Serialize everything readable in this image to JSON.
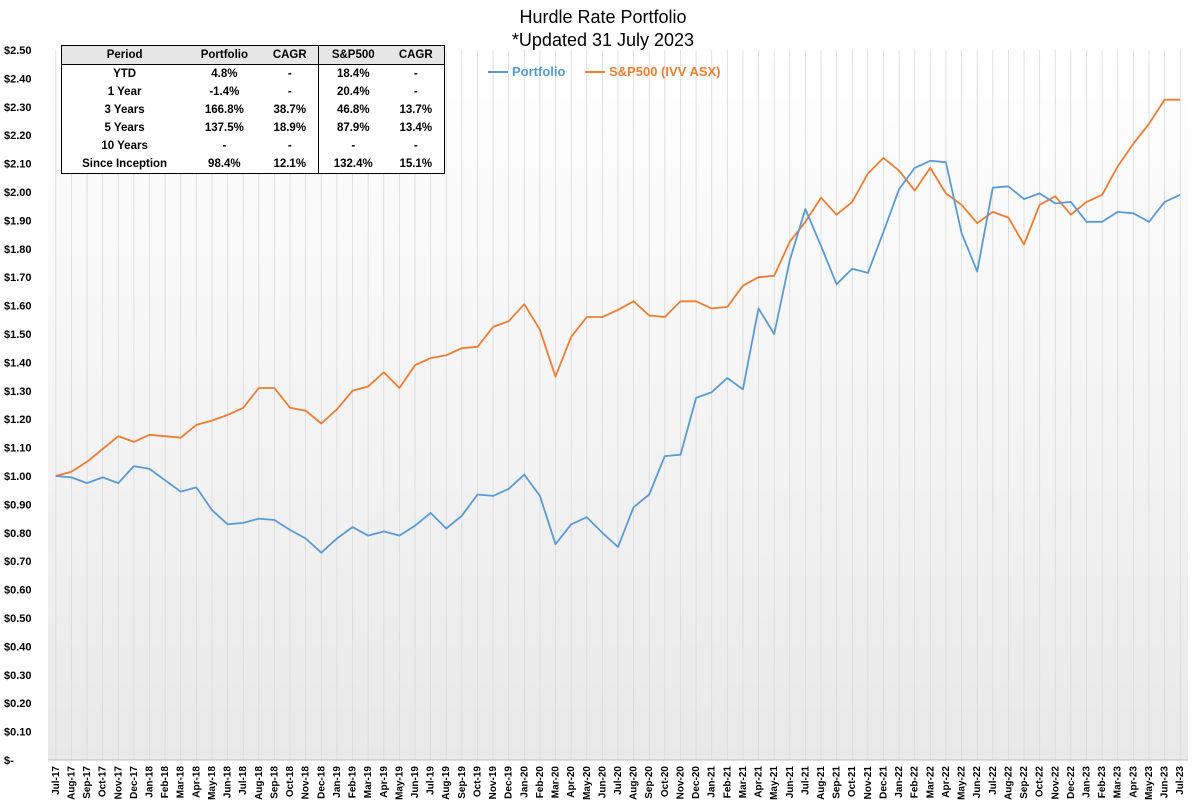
{
  "chart_data": {
    "type": "line",
    "title": "Hurdle Rate Portfolio",
    "subtitle": "*Updated 31 July 2023",
    "xlabel": "",
    "ylabel": "",
    "ylim": [
      0,
      2.5
    ],
    "y_ticks": [
      "$-",
      "$0.10",
      "$0.20",
      "$0.30",
      "$0.40",
      "$0.50",
      "$0.60",
      "$0.70",
      "$0.80",
      "$0.90",
      "$1.00",
      "$1.10",
      "$1.20",
      "$1.30",
      "$1.40",
      "$1.50",
      "$1.60",
      "$1.70",
      "$1.80",
      "$1.90",
      "$2.00",
      "$2.10",
      "$2.20",
      "$2.30",
      "$2.40",
      "$2.50"
    ],
    "grid": "vertical",
    "legend_position": "top-center",
    "categories": [
      "Jul-17",
      "Aug-17",
      "Sep-17",
      "Oct-17",
      "Nov-17",
      "Dec-17",
      "Jan-18",
      "Feb-18",
      "Mar-18",
      "Apr-18",
      "May-18",
      "Jun-18",
      "Jul-18",
      "Aug-18",
      "Sep-18",
      "Oct-18",
      "Nov-18",
      "Dec-18",
      "Jan-19",
      "Feb-19",
      "Mar-19",
      "Apr-19",
      "May-19",
      "Jun-19",
      "Jul-19",
      "Aug-19",
      "Sep-19",
      "Oct-19",
      "Nov-19",
      "Dec-19",
      "Jan-20",
      "Feb-20",
      "Mar-20",
      "Apr-20",
      "May-20",
      "Jun-20",
      "Jul-20",
      "Aug-20",
      "Sep-20",
      "Oct-20",
      "Nov-20",
      "Dec-20",
      "Jan-21",
      "Feb-21",
      "Mar-21",
      "Apr-21",
      "May-21",
      "Jun-21",
      "Jul-21",
      "Aug-21",
      "Sep-21",
      "Oct-21",
      "Nov-21",
      "Dec-21",
      "Jan-22",
      "Feb-22",
      "Mar-22",
      "Apr-22",
      "May-22",
      "Jun-22",
      "Jul-22",
      "Aug-22",
      "Sep-22",
      "Oct-22",
      "Nov-22",
      "Dec-22",
      "Jan-23",
      "Feb-23",
      "Mar-23",
      "Apr-23",
      "May-23",
      "Jun-23",
      "Jul-23"
    ],
    "x_tick_labels": [
      "Jul-17",
      "Aug-17",
      "Sep-17",
      "Oct-17",
      "Nov-17",
      "Dec-17",
      "Jan-18",
      "Feb-18",
      "Mar-18",
      "Apr-18",
      "May-18",
      "Jun-18",
      "Jul-18",
      "Aug-18",
      "Sep-18",
      "Oct-18",
      "Nov-18",
      "Dec-18",
      "Jan-19",
      "Feb-19",
      "Mar-19",
      "Apr-19",
      "May-19",
      "Jun-19",
      "Jul-19",
      "Aug-19",
      "Sep-19",
      "Oct-19",
      "Nov-19",
      "Dec-19",
      "Jan-20",
      "Feb-20",
      "Mar-20",
      "Apr-20",
      "May-20",
      "Jun-20",
      "Jul-20",
      "Aug-20",
      "Sep-20",
      "Oct-20",
      "Nov-20",
      "Dec-20",
      "Jan-21",
      "Feb-21",
      "Mar-21",
      "Apr-21",
      "May-21",
      "Jun-21",
      "Jul-21",
      "Aug-21",
      "Sep-21",
      "Oct-21",
      "Nov-21",
      "Dec-21",
      "Jan-22",
      "Feb-22",
      "Mar-22",
      "Apr-22",
      "May-22",
      "Jun-22",
      "Jul-22",
      "Aug-22",
      "Sep-22",
      "Oct-22",
      "Nov-22",
      "Dec-22",
      "Jan-23",
      "Feb-23",
      "Mar-23",
      "Apr-23",
      "May-23",
      "Jun-23",
      "Jul-23"
    ],
    "series": [
      {
        "name": "Portfolio",
        "color": "#5b9bd5",
        "values": [
          1.0,
          0.995,
          0.975,
          0.995,
          0.975,
          1.035,
          1.025,
          0.985,
          0.945,
          0.96,
          0.88,
          0.83,
          0.835,
          0.85,
          0.845,
          0.81,
          0.78,
          0.73,
          0.78,
          0.82,
          0.79,
          0.805,
          0.79,
          0.825,
          0.87,
          0.815,
          0.86,
          0.935,
          0.93,
          0.955,
          1.005,
          0.93,
          0.76,
          0.83,
          0.855,
          0.8,
          0.75,
          0.89,
          0.935,
          1.07,
          1.075,
          1.275,
          1.295,
          1.345,
          1.305,
          1.59,
          1.5,
          1.76,
          1.94,
          1.81,
          1.675,
          1.73,
          1.715,
          1.86,
          2.01,
          2.085,
          2.11,
          2.105,
          1.855,
          1.72,
          2.015,
          2.02,
          1.975,
          1.995,
          1.96,
          1.965,
          1.895,
          1.895,
          1.93,
          1.925,
          1.895,
          1.965,
          1.99
        ]
      },
      {
        "name": "S&P500 (IVV ASX)",
        "color": "#ed7d31",
        "values": [
          1.0,
          1.015,
          1.05,
          1.095,
          1.14,
          1.12,
          1.145,
          1.14,
          1.135,
          1.18,
          1.195,
          1.215,
          1.24,
          1.31,
          1.31,
          1.24,
          1.23,
          1.185,
          1.235,
          1.3,
          1.315,
          1.365,
          1.31,
          1.39,
          1.415,
          1.425,
          1.45,
          1.455,
          1.525,
          1.545,
          1.605,
          1.515,
          1.35,
          1.49,
          1.56,
          1.56,
          1.585,
          1.615,
          1.565,
          1.56,
          1.615,
          1.615,
          1.59,
          1.595,
          1.67,
          1.7,
          1.705,
          1.825,
          1.895,
          1.98,
          1.92,
          1.965,
          2.065,
          2.12,
          2.075,
          2.005,
          2.085,
          1.995,
          1.955,
          1.89,
          1.93,
          1.91,
          1.815,
          1.955,
          1.985,
          1.92,
          1.965,
          1.99,
          2.09,
          2.17,
          2.24,
          2.325,
          2.325
        ]
      }
    ]
  },
  "table": {
    "headers": [
      "Period",
      "Portfolio",
      "CAGR",
      "S&P500",
      "CAGR"
    ],
    "rows": [
      [
        "YTD",
        "4.8%",
        "-",
        "18.4%",
        "-"
      ],
      [
        "1 Year",
        "-1.4%",
        "-",
        "20.4%",
        "-"
      ],
      [
        "3 Years",
        "166.8%",
        "38.7%",
        "46.8%",
        "13.7%"
      ],
      [
        "5 Years",
        "137.5%",
        "18.9%",
        "87.9%",
        "13.4%"
      ],
      [
        "10 Years",
        "-",
        "-",
        "-",
        "-"
      ],
      [
        "Since Inception",
        "98.4%",
        "12.1%",
        "132.4%",
        "15.1%"
      ]
    ]
  }
}
